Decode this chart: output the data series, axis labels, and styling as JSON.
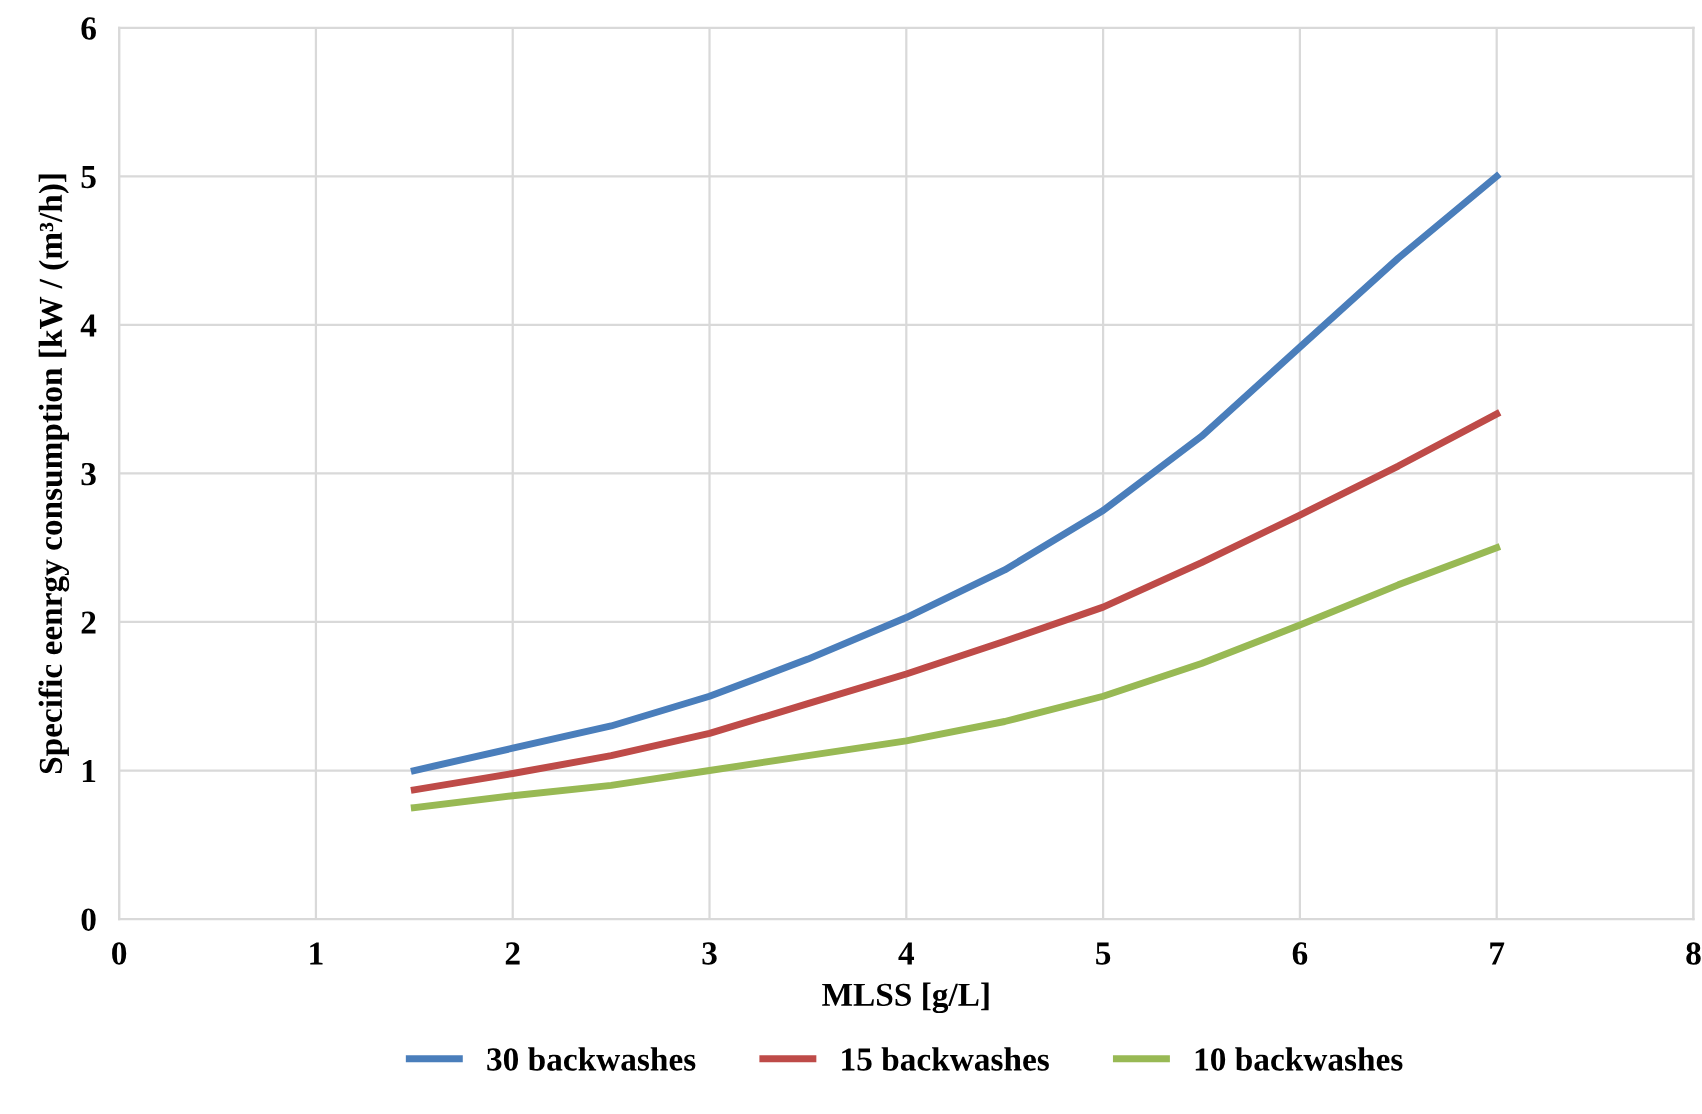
{
  "chart_data": {
    "type": "line",
    "xlabel": "MLSS [g/L]",
    "ylabel": "Specific eenrgy consumption [kW / (m³/h)]",
    "x": [
      1.5,
      2,
      2.5,
      3,
      3.5,
      4,
      4.5,
      5,
      5.5,
      6,
      6.5,
      7
    ],
    "series": [
      {
        "name": "30 backwashes",
        "color": "#4a7ebb",
        "values": [
          1.0,
          1.15,
          1.3,
          1.5,
          1.75,
          2.03,
          2.35,
          2.75,
          3.25,
          3.85,
          4.45,
          5.0
        ]
      },
      {
        "name": "15 backwashes",
        "color": "#be4b48",
        "values": [
          0.87,
          0.98,
          1.1,
          1.25,
          1.45,
          1.65,
          1.87,
          2.1,
          2.4,
          2.72,
          3.05,
          3.4
        ]
      },
      {
        "name": "10 backwashes",
        "color": "#98b954",
        "values": [
          0.75,
          0.83,
          0.9,
          1.0,
          1.1,
          1.2,
          1.33,
          1.5,
          1.72,
          1.98,
          2.25,
          2.5
        ]
      }
    ],
    "xlim": [
      0,
      8
    ],
    "xticks": [
      0,
      1,
      2,
      3,
      4,
      5,
      6,
      7,
      8
    ],
    "ylim": [
      0,
      6
    ],
    "yticks": [
      0,
      1,
      2,
      3,
      4,
      5,
      6
    ],
    "grid": true,
    "legend": "bottom",
    "marker": "none",
    "line_style": "solid"
  }
}
